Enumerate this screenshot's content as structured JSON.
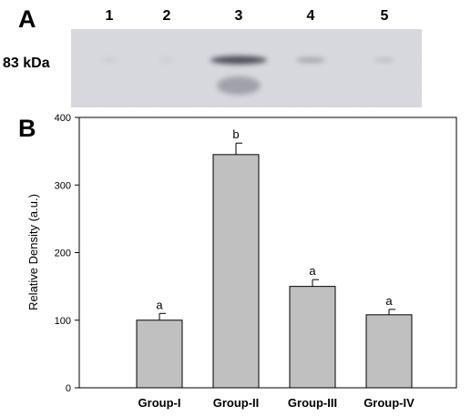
{
  "panel_a": {
    "label": "A",
    "marker": "83 kDa",
    "lanes": [
      {
        "label": "1",
        "intensity": 0.05
      },
      {
        "label": "2",
        "intensity": 0.03
      },
      {
        "label": "3",
        "intensity": 1.0
      },
      {
        "label": "4",
        "intensity": 0.35
      },
      {
        "label": "5",
        "intensity": 0.15
      }
    ],
    "background_color": "#dadbe1",
    "band_color": "#3b3d48"
  },
  "panel_b": {
    "label": "B"
  },
  "chart_data": {
    "type": "bar",
    "categories": [
      "Group-I",
      "Group-II",
      "Group-III",
      "Group-IV"
    ],
    "values": [
      100,
      345,
      150,
      108
    ],
    "errors": [
      10,
      17,
      10,
      8
    ],
    "significance": [
      "a",
      "b",
      "a",
      "a"
    ],
    "title": "",
    "xlabel": "",
    "ylabel": "Relative Density (a.u.)",
    "ylim": [
      0,
      400
    ],
    "yticks": [
      "0",
      "100",
      "200",
      "300",
      "400"
    ],
    "grid": false,
    "bar_color": "#c0c0c0",
    "edge_color": "#000000"
  }
}
